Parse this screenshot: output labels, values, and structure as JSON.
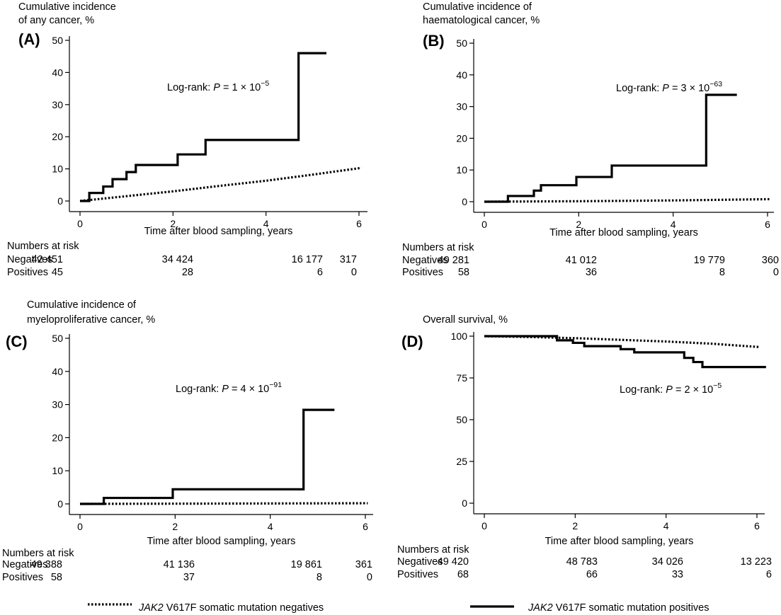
{
  "chart_data": [
    {
      "type": "line",
      "panel": "(A)",
      "ylabel": [
        "Cumulative incidence",
        "of any cancer, %"
      ],
      "xlabel": "Time after blood sampling, years",
      "xlim": [
        0,
        6
      ],
      "ylim": [
        0,
        50
      ],
      "xticks": [
        0,
        2,
        4,
        6
      ],
      "yticks": [
        0,
        10,
        20,
        30,
        40,
        50
      ],
      "annotation": {
        "prefix": "Log-rank: ",
        "p": "P",
        "mid": " = 1 × 10",
        "exp": "−5"
      },
      "series": [
        {
          "style": "dotted",
          "step": false,
          "x": [
            0,
            1,
            2,
            3,
            4,
            5,
            6.05
          ],
          "y": [
            0,
            1.5,
            3,
            4.7,
            6.3,
            8.2,
            10.3
          ]
        },
        {
          "style": "solid",
          "step": true,
          "x": [
            0,
            0.2,
            0.5,
            0.7,
            1.0,
            1.2,
            2.1,
            2.7,
            4.7,
            5.3
          ],
          "y": [
            0,
            2.5,
            4.5,
            6.8,
            9,
            11.2,
            14.5,
            19,
            46,
            46
          ]
        }
      ],
      "risk": {
        "title": "Numbers at risk",
        "rows": [
          {
            "label": "Negatives",
            "values": [
              "42 451",
              "34 424",
              "16 177",
              "317"
            ]
          },
          {
            "label": "Positives",
            "values": [
              "45",
              "28",
              "6",
              "0"
            ]
          }
        ]
      }
    },
    {
      "type": "line",
      "panel": "(B)",
      "ylabel": [
        "Cumulative incidence of",
        "haematological cancer, %"
      ],
      "xlabel": "Time after blood sampling, years",
      "xlim": [
        0,
        6
      ],
      "ylim": [
        0,
        50
      ],
      "xticks": [
        0,
        2,
        4,
        6
      ],
      "yticks": [
        0,
        10,
        20,
        30,
        40,
        50
      ],
      "annotation": {
        "prefix": "Log-rank: ",
        "p": "P",
        "mid": " = 3 × 10",
        "exp": "−63"
      },
      "series": [
        {
          "style": "dotted",
          "step": false,
          "x": [
            0,
            2,
            4,
            6.05
          ],
          "y": [
            0,
            0.15,
            0.4,
            0.8
          ]
        },
        {
          "style": "solid",
          "step": true,
          "x": [
            0,
            0.5,
            1.05,
            1.2,
            1.95,
            2.7,
            4.7,
            5.35
          ],
          "y": [
            0,
            1.8,
            3.5,
            5.2,
            7.8,
            11.4,
            33.7,
            33.7
          ]
        }
      ],
      "risk": {
        "title": "Numbers at risk",
        "rows": [
          {
            "label": "Negatives",
            "values": [
              "49 281",
              "41 012",
              "19 779",
              "360"
            ]
          },
          {
            "label": "Positives",
            "values": [
              "58",
              "36",
              "8",
              "0"
            ]
          }
        ]
      }
    },
    {
      "type": "line",
      "panel": "(C)",
      "ylabel": [
        "Cumulative incidence of",
        "myeloproliferative cancer, %"
      ],
      "xlabel": "Time after blood sampling, years",
      "xlim": [
        0,
        6
      ],
      "ylim": [
        0,
        50
      ],
      "xticks": [
        0,
        2,
        4,
        6
      ],
      "yticks": [
        0,
        10,
        20,
        30,
        40,
        50
      ],
      "annotation": {
        "prefix": "Log-rank: ",
        "p": "P",
        "mid": " = 4 × 10",
        "exp": "−91"
      },
      "series": [
        {
          "style": "dotted",
          "step": false,
          "x": [
            0,
            3,
            6.05
          ],
          "y": [
            0,
            0.1,
            0.2
          ]
        },
        {
          "style": "solid",
          "step": true,
          "x": [
            0,
            0.5,
            1.95,
            4.7,
            5.35
          ],
          "y": [
            0,
            1.8,
            4.4,
            28.4,
            28.4
          ]
        }
      ],
      "risk": {
        "title": "Numbers at risk",
        "rows": [
          {
            "label": "Negatives",
            "values": [
              "49 388",
              "41 136",
              "19 861",
              "361"
            ]
          },
          {
            "label": "Positives",
            "values": [
              "58",
              "37",
              "8",
              "0"
            ]
          }
        ]
      }
    },
    {
      "type": "line",
      "panel": "(D)",
      "ylabel": [
        "Overall survival, %"
      ],
      "xlabel": "Time after blood sampling, years",
      "xlim": [
        0,
        6
      ],
      "ylim": [
        0,
        100
      ],
      "xticks": [
        0,
        2,
        4,
        6
      ],
      "yticks": [
        0,
        25,
        50,
        75,
        100
      ],
      "annotation": {
        "prefix": "Log-rank: ",
        "p": "P",
        "mid": " = 2 × 10",
        "exp": "−5"
      },
      "series": [
        {
          "style": "dotted",
          "step": false,
          "x": [
            0,
            1,
            2,
            3,
            4,
            5,
            6.05
          ],
          "y": [
            100,
            99.5,
            98.8,
            97.8,
            96.8,
            95.5,
            93.5
          ]
        },
        {
          "style": "solid",
          "step": true,
          "x": [
            0,
            1.6,
            1.95,
            2.2,
            3.0,
            3.3,
            4.4,
            4.6,
            4.8,
            6.2
          ],
          "y": [
            100,
            97.5,
            96,
            94,
            92.2,
            90.3,
            87,
            84.5,
            81.5,
            81.5
          ]
        }
      ],
      "risk": {
        "title": "Numbers at risk",
        "rows": [
          {
            "label": "Negatives",
            "values": [
              "49 420",
              "48 783",
              "34 026",
              "13 223"
            ]
          },
          {
            "label": "Positives",
            "values": [
              "68",
              "66",
              "33",
              "6"
            ]
          }
        ]
      }
    }
  ],
  "legend": {
    "negatives": {
      "gene": "JAK2",
      "rest": " V617F somatic mutation negatives"
    },
    "positives": {
      "gene": "JAK2",
      "rest": " V617F somatic mutation positives"
    }
  }
}
